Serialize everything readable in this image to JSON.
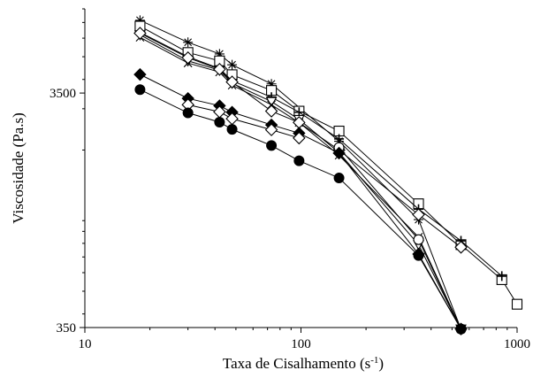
{
  "chart_data": {
    "type": "scatter",
    "title": "",
    "xlabel": "Taxa de Cisalhamento (s",
    "xlabel_sup": "-1",
    "xlabel_suffix": ")",
    "ylabel": "Viscosidade (Pa.s)",
    "xscale": "log",
    "yscale": "log",
    "xlim": [
      10,
      1000
    ],
    "ylim": [
      350,
      8000
    ],
    "xticks": [
      {
        "value": 10,
        "label": "10"
      },
      {
        "value": 100,
        "label": "100"
      },
      {
        "value": 1000,
        "label": "1000"
      }
    ],
    "yticks": [
      {
        "value": 350,
        "label": "350"
      },
      {
        "value": 3500,
        "label": "3500"
      }
    ],
    "grid": false,
    "legend": "none",
    "series": [
      {
        "marker": "star",
        "points": [
          [
            18,
            7150
          ],
          [
            30,
            5760
          ],
          [
            42,
            5140
          ],
          [
            48,
            4620
          ],
          [
            73,
            3830
          ],
          [
            150,
            2180
          ],
          [
            350,
            1010
          ],
          [
            550,
            345
          ]
        ]
      },
      {
        "marker": "square-open",
        "points": [
          [
            18,
            6750
          ],
          [
            30,
            5210
          ],
          [
            42,
            4800
          ],
          [
            48,
            4190
          ],
          [
            73,
            3590
          ],
          [
            98,
            2930
          ],
          [
            150,
            2410
          ],
          [
            350,
            1180
          ],
          [
            550,
            790
          ],
          [
            850,
            560
          ],
          [
            1000,
            440
          ]
        ]
      },
      {
        "marker": "plus",
        "points": [
          [
            18,
            6350
          ],
          [
            30,
            5000
          ],
          [
            42,
            4450
          ],
          [
            48,
            3950
          ],
          [
            73,
            3360
          ],
          [
            98,
            2900
          ],
          [
            150,
            2230
          ],
          [
            350,
            1120
          ],
          [
            550,
            820
          ],
          [
            850,
            580
          ]
        ]
      },
      {
        "marker": "triangle-down-open",
        "points": [
          [
            18,
            6200
          ],
          [
            30,
            4800
          ],
          [
            42,
            4380
          ],
          [
            48,
            3850
          ],
          [
            73,
            3220
          ],
          [
            98,
            2700
          ],
          [
            150,
            1950
          ],
          [
            350,
            790
          ],
          [
            550,
            345
          ]
        ]
      },
      {
        "marker": "x",
        "points": [
          [
            18,
            6050
          ],
          [
            30,
            4700
          ],
          [
            42,
            4300
          ],
          [
            48,
            3780
          ],
          [
            73,
            3120
          ],
          [
            98,
            2620
          ],
          [
            150,
            1900
          ],
          [
            350,
            850
          ],
          [
            550,
            345
          ]
        ]
      },
      {
        "marker": "diamond-open",
        "points": [
          [
            18,
            6300
          ],
          [
            30,
            4950
          ],
          [
            42,
            4420
          ],
          [
            48,
            3900
          ],
          [
            73,
            2930
          ],
          [
            98,
            2620
          ],
          [
            150,
            2000
          ],
          [
            350,
            1060
          ],
          [
            550,
            770
          ]
        ]
      },
      {
        "marker": "circle-open",
        "points": [
          [
            150,
            2050
          ],
          [
            350,
            830
          ],
          [
            550,
            345
          ]
        ]
      },
      {
        "marker": "diamond-filled",
        "points": [
          [
            18,
            4200
          ],
          [
            30,
            3320
          ],
          [
            42,
            3090
          ],
          [
            48,
            2900
          ],
          [
            73,
            2560
          ],
          [
            98,
            2360
          ],
          [
            150,
            1940
          ],
          [
            350,
            720
          ],
          [
            550,
            345
          ]
        ]
      },
      {
        "marker": "diamond-open",
        "points": [
          [
            30,
            3120
          ],
          [
            42,
            2910
          ],
          [
            48,
            2720
          ],
          [
            73,
            2440
          ],
          [
            98,
            2250
          ]
        ]
      },
      {
        "marker": "circle-filled",
        "points": [
          [
            18,
            3620
          ],
          [
            30,
            2880
          ],
          [
            42,
            2630
          ],
          [
            48,
            2450
          ],
          [
            73,
            2090
          ],
          [
            98,
            1800
          ],
          [
            150,
            1520
          ],
          [
            350,
            710
          ],
          [
            550,
            345
          ]
        ]
      }
    ]
  }
}
